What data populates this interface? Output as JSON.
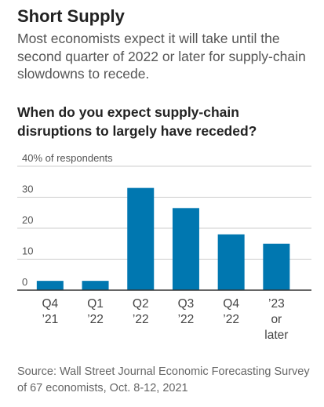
{
  "header": {
    "title": "Short Supply",
    "subtitle": "Most economists expect it will take until the second quarter of 2022 or later for supply-chain slowdowns to recede.",
    "question": "When do you expect supply-chain disruptions to largely have receded?"
  },
  "source": "Source: Wall Street Journal Economic Forecasting Survey of 67 economists, Oct. 8-12, 2021",
  "colors": {
    "bar": "#0077b0",
    "grid": "#cccccc",
    "axis": "#333333"
  },
  "chart_data": {
    "type": "bar",
    "title": "When do you expect supply-chain disruptions to largely have receded?",
    "ylabel": "% of respondents",
    "ylim": [
      0,
      40
    ],
    "yticks": [
      {
        "value": 0,
        "label": "0"
      },
      {
        "value": 10,
        "label": "10"
      },
      {
        "value": 20,
        "label": "20"
      },
      {
        "value": 30,
        "label": "30"
      },
      {
        "value": 40,
        "label": "40% of respondents"
      }
    ],
    "categories": [
      [
        "Q4",
        "’21"
      ],
      [
        "Q1",
        "’22"
      ],
      [
        "Q2",
        "’22"
      ],
      [
        "Q3",
        "’22"
      ],
      [
        "Q4",
        "’22"
      ],
      [
        "’23",
        "or",
        "later"
      ]
    ],
    "values": [
      3,
      3,
      33,
      26.5,
      18,
      15
    ]
  }
}
